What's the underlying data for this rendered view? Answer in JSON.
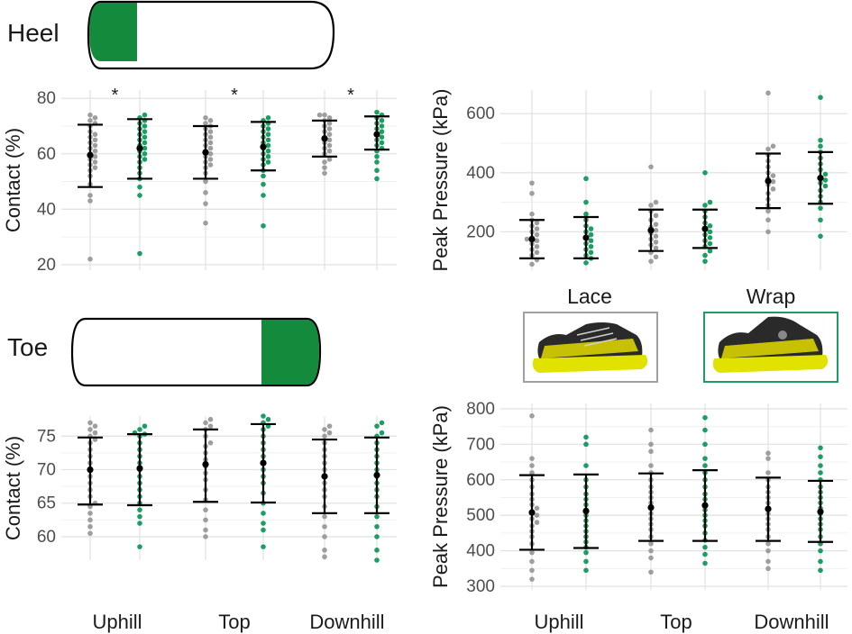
{
  "colors": {
    "lace": "#9e9e9e",
    "wrap": "#1b9e63",
    "region_fill": "#148a3c",
    "mean": "#000000"
  },
  "sections": {
    "heel": "Heel",
    "toe": "Toe"
  },
  "legend": {
    "lace_label": "Lace",
    "wrap_label": "Wrap",
    "lace_image": "La Sportiva trail running shoe with laces",
    "wrap_image": "La Sportiva trail running shoe with wrap closure"
  },
  "x_categories": [
    "Uphill",
    "Top",
    "Downhill"
  ],
  "chart_data": [
    {
      "id": "heel_contact",
      "type": "scatter",
      "title": "Heel",
      "ylabel": "Contact (%)",
      "ylim": [
        18,
        83
      ],
      "yticks": [
        20,
        40,
        60,
        80
      ],
      "categories": [
        "Uphill",
        "Top",
        "Downhill"
      ],
      "annotations": [
        "*",
        "*",
        "*"
      ],
      "series": [
        {
          "name": "Lace",
          "color": "#9e9e9e",
          "mean": [
            59.5,
            60.5,
            65.5
          ],
          "lower": [
            48,
            51,
            59
          ],
          "upper": [
            70.5,
            70,
            72
          ],
          "points": [
            [
              22,
              43,
              45,
              49,
              52,
              54,
              55,
              56,
              57,
              58,
              59,
              60,
              61,
              62,
              63,
              64,
              65,
              66,
              67,
              68,
              70,
              71,
              72,
              73,
              74
            ],
            [
              35,
              42,
              46,
              50,
              53,
              55,
              56,
              57,
              58,
              59,
              60,
              61,
              62,
              63,
              64,
              65,
              66,
              67,
              68,
              69,
              70,
              71,
              72,
              73
            ],
            [
              53,
              55,
              57,
              58,
              60,
              61,
              62,
              63,
              64,
              65,
              66,
              67,
              68,
              69,
              70,
              71,
              72,
              73,
              74,
              74
            ]
          ]
        },
        {
          "name": "Wrap",
          "color": "#1b9e63",
          "mean": [
            62,
            62.5,
            67
          ],
          "lower": [
            51,
            54,
            61.5
          ],
          "upper": [
            72.5,
            71.5,
            73.5
          ],
          "points": [
            [
              24,
              45,
              48,
              51,
              53,
              55,
              57,
              58,
              59,
              60,
              61,
              62,
              63,
              64,
              65,
              66,
              67,
              68,
              69,
              70,
              71,
              72,
              73,
              74
            ],
            [
              34,
              45,
              49,
              52,
              54,
              56,
              57,
              58,
              59,
              60,
              61,
              62,
              63,
              64,
              65,
              66,
              67,
              68,
              69,
              70,
              71,
              72,
              73
            ],
            [
              51,
              54,
              57,
              59,
              61,
              62,
              63,
              64,
              65,
              66,
              67,
              68,
              69,
              70,
              71,
              72,
              73,
              74,
              75
            ]
          ]
        }
      ]
    },
    {
      "id": "heel_pressure",
      "type": "scatter",
      "ylabel": "Peak Pressure (kPa)",
      "ylim": [
        70,
        680
      ],
      "yticks": [
        200,
        400,
        600
      ],
      "categories": [
        "Uphill",
        "Top",
        "Downhill"
      ],
      "series": [
        {
          "name": "Lace",
          "color": "#9e9e9e",
          "mean": [
            175,
            205,
            372
          ],
          "lower": [
            110,
            135,
            280
          ],
          "upper": [
            240,
            275,
            465
          ],
          "points": [
            [
              90,
              105,
              120,
              130,
              140,
              150,
              160,
              170,
              175,
              180,
              190,
              200,
              210,
              220,
              230,
              240,
              260,
              330,
              365
            ],
            [
              100,
              115,
              130,
              145,
              155,
              165,
              175,
              185,
              195,
              205,
              215,
              225,
              240,
              255,
              270,
              290,
              300,
              420
            ],
            [
              200,
              240,
              270,
              290,
              310,
              330,
              345,
              360,
              370,
              380,
              390,
              400,
              420,
              440,
              460,
              480,
              490,
              670
            ]
          ]
        },
        {
          "name": "Wrap",
          "color": "#1b9e63",
          "mean": [
            180,
            210,
            382
          ],
          "lower": [
            110,
            145,
            295
          ],
          "upper": [
            250,
            275,
            470
          ],
          "points": [
            [
              95,
              110,
              120,
              130,
              140,
              150,
              160,
              170,
              180,
              190,
              200,
              210,
              220,
              240,
              260,
              300,
              380
            ],
            [
              100,
              120,
              135,
              150,
              160,
              170,
              180,
              190,
              200,
              210,
              220,
              230,
              250,
              270,
              290,
              300,
              400
            ],
            [
              185,
              240,
              280,
              300,
              320,
              340,
              355,
              365,
              375,
              385,
              395,
              410,
              430,
              450,
              470,
              490,
              510,
              655
            ]
          ]
        }
      ]
    },
    {
      "id": "toe_contact",
      "type": "scatter",
      "title": "Toe",
      "ylabel": "Contact (%)",
      "ylim": [
        56.5,
        78
      ],
      "yticks": [
        60,
        65,
        70,
        75
      ],
      "categories": [
        "Uphill",
        "Top",
        "Downhill"
      ],
      "series": [
        {
          "name": "Lace",
          "color": "#9e9e9e",
          "mean": [
            70,
            70.8,
            69
          ],
          "lower": [
            64.8,
            65.2,
            63.5
          ],
          "upper": [
            74.8,
            76,
            74.5
          ],
          "points": [
            [
              60.5,
              61.5,
              62.5,
              63.5,
              64.5,
              65,
              66,
              67,
              68,
              69,
              70,
              71,
              72,
              73,
              74,
              74.5,
              75,
              75.5,
              76,
              76.5,
              77
            ],
            [
              60,
              61,
              62.5,
              64,
              65.5,
              67,
              68.5,
              69.5,
              70.5,
              71.5,
              72.5,
              73.5,
              74,
              75,
              76,
              76.5,
              77,
              77.5
            ],
            [
              57,
              58,
              60,
              61.5,
              63,
              64.5,
              66,
              67,
              68,
              69,
              70,
              71,
              72,
              73,
              74,
              75,
              75.5,
              76,
              76.5
            ]
          ]
        },
        {
          "name": "Wrap",
          "color": "#1b9e63",
          "mean": [
            70.2,
            71,
            69.2
          ],
          "lower": [
            64.7,
            65.1,
            63.5
          ],
          "upper": [
            75.3,
            76.8,
            74.8
          ],
          "points": [
            [
              58.5,
              62,
              63,
              64,
              65,
              66,
              67,
              68,
              69,
              70,
              71,
              72,
              73,
              74,
              75,
              75.3,
              75.5,
              76,
              76.5
            ],
            [
              58.5,
              61,
              62,
              63.5,
              65,
              66.5,
              68,
              69,
              70,
              71,
              72,
              73,
              74,
              75,
              76,
              76.5,
              77,
              77.5,
              78
            ],
            [
              56.5,
              58,
              60,
              61.5,
              63,
              64.5,
              66,
              67,
              68,
              69,
              70,
              71,
              72,
              73,
              74,
              75,
              75.5,
              76.5,
              77
            ]
          ]
        }
      ]
    },
    {
      "id": "toe_pressure",
      "type": "scatter",
      "ylabel": "Peak Pressure (kPa)",
      "ylim": [
        290,
        815
      ],
      "yticks": [
        300,
        400,
        500,
        600,
        700,
        800
      ],
      "categories": [
        "Uphill",
        "Top",
        "Downhill"
      ],
      "series": [
        {
          "name": "Lace",
          "color": "#9e9e9e",
          "mean": [
            508,
            522,
            518
          ],
          "lower": [
            403,
            428,
            428
          ],
          "upper": [
            613,
            618,
            606
          ],
          "points": [
            [
              320,
              345,
              370,
              395,
              420,
              440,
              455,
              470,
              480,
              490,
              500,
              510,
              520,
              530,
              545,
              560,
              580,
              600,
              620,
              640,
              660,
              780
            ],
            [
              340,
              380,
              400,
              420,
              440,
              460,
              475,
              490,
              505,
              520,
              535,
              550,
              565,
              580,
              600,
              620,
              640,
              680,
              700,
              740
            ],
            [
              350,
              370,
              400,
              420,
              440,
              460,
              475,
              490,
              505,
              520,
              535,
              550,
              565,
              580,
              600,
              620,
              660,
              675
            ]
          ]
        },
        {
          "name": "Wrap",
          "color": "#1b9e63",
          "mean": [
            512,
            528,
            510
          ],
          "lower": [
            408,
            428,
            425
          ],
          "upper": [
            615,
            627,
            597
          ],
          "points": [
            [
              345,
              370,
              395,
              410,
              425,
              440,
              455,
              470,
              485,
              500,
              515,
              530,
              545,
              560,
              580,
              600,
              640,
              700,
              720
            ],
            [
              365,
              390,
              410,
              430,
              450,
              470,
              485,
              500,
              515,
              530,
              545,
              560,
              580,
              600,
              620,
              640,
              660,
              700,
              740,
              775
            ],
            [
              345,
              370,
              400,
              420,
              440,
              460,
              475,
              490,
              505,
              520,
              535,
              550,
              565,
              580,
              600,
              620,
              640,
              665,
              690
            ]
          ]
        }
      ]
    }
  ]
}
